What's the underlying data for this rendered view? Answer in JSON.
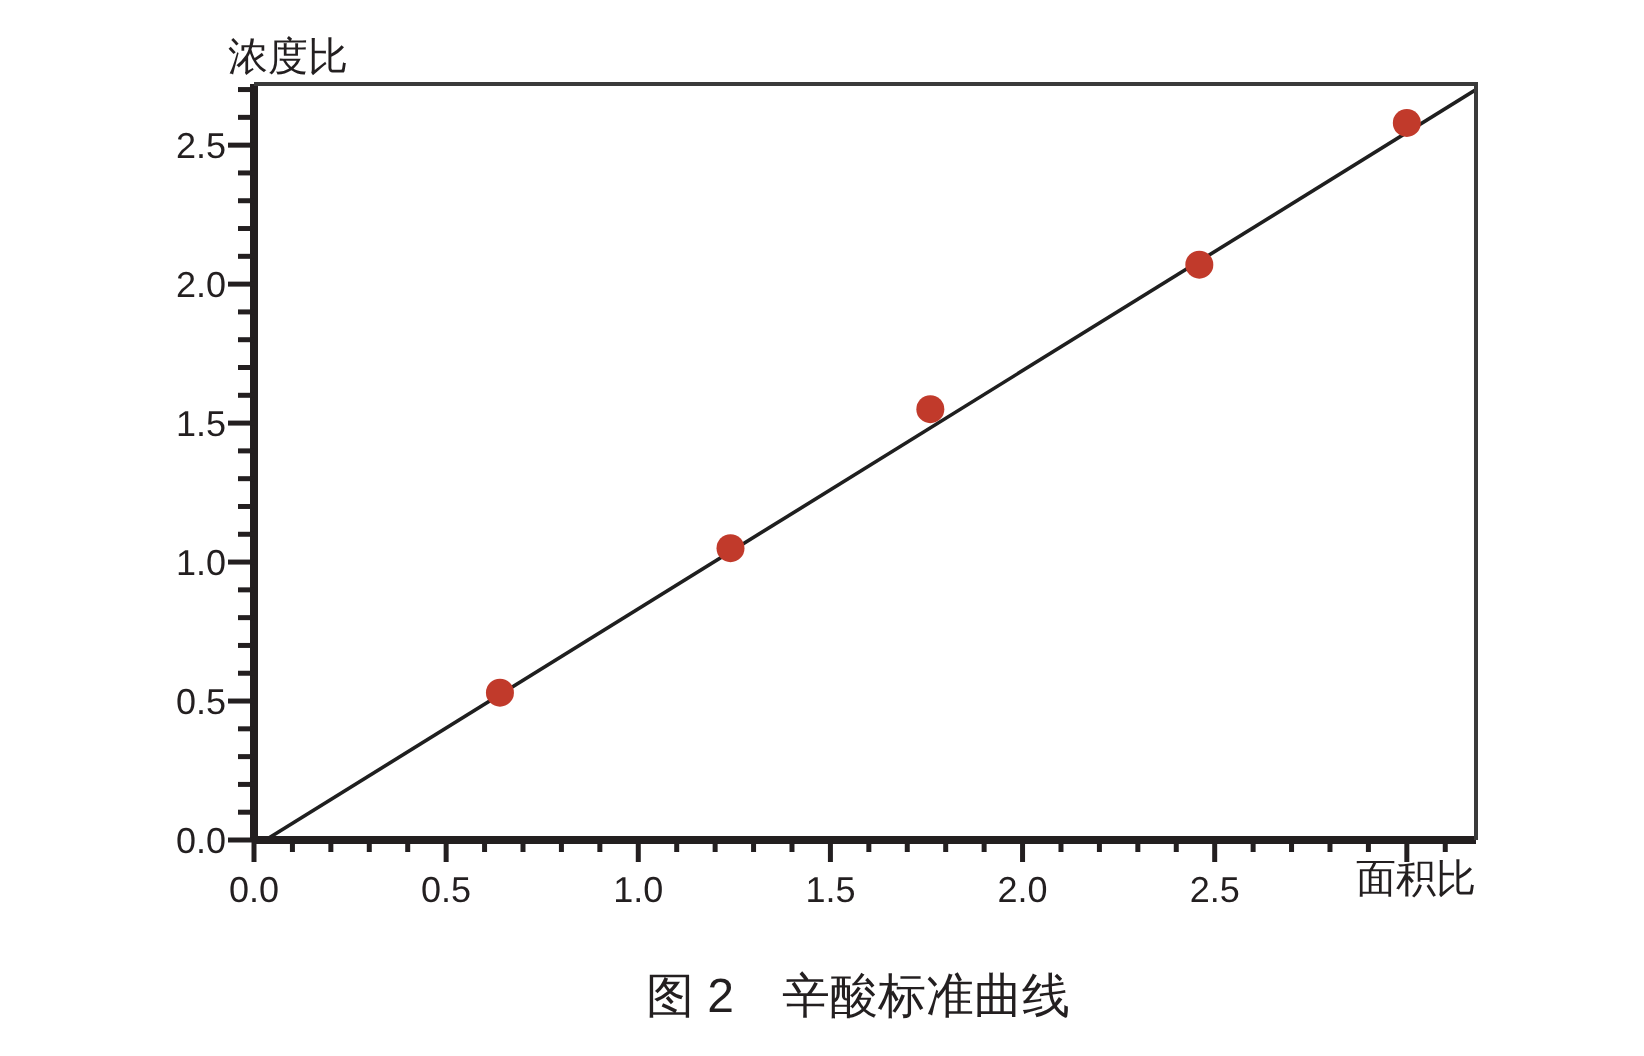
{
  "chart_data": {
    "type": "scatter",
    "title": "图 2　辛酸标准曲线",
    "xlabel": "面积比",
    "ylabel": "浓度比",
    "series": [
      {
        "type": "line",
        "color": "#1f1f1f",
        "x": [
          0.03,
          3.18
        ],
        "values": [
          0,
          2.7
        ]
      },
      {
        "marker": "circle",
        "color": "#c13a2b",
        "x": [
          0.64,
          1.24,
          1.76,
          2.46,
          3.0
        ],
        "values": [
          0.53,
          1.05,
          1.55,
          2.07,
          2.58
        ]
      }
    ],
    "xlim": [
      0,
      3.18
    ],
    "ylim": [
      0,
      2.72
    ],
    "xticks": [
      {
        "value": 0,
        "label": "0.0"
      },
      {
        "value": 0.1,
        "label": null
      },
      {
        "value": 0.2,
        "label": null
      },
      {
        "value": 0.3,
        "label": null
      },
      {
        "value": 0.4,
        "label": null
      },
      0.5,
      {
        "value": 0.6,
        "label": null
      },
      {
        "value": 0.7,
        "label": null
      },
      {
        "value": 0.8,
        "label": null
      },
      {
        "value": 0.9,
        "label": null
      },
      {
        "value": 1,
        "label": "1.0"
      },
      {
        "value": 1.1,
        "label": null
      },
      {
        "value": 1.2,
        "label": null
      },
      {
        "value": 1.3,
        "label": null
      },
      {
        "value": 1.4,
        "label": null
      },
      1.5,
      {
        "value": 1.6,
        "label": null
      },
      {
        "value": 1.7,
        "label": null
      },
      {
        "value": 1.8,
        "label": null
      },
      {
        "value": 1.9,
        "label": null
      },
      {
        "value": 2,
        "label": "2.0"
      },
      {
        "value": 2.1,
        "label": null
      },
      {
        "value": 2.2,
        "label": null
      },
      {
        "value": 2.3,
        "label": null
      },
      {
        "value": 2.4,
        "label": null
      },
      2.5,
      {
        "value": 2.6,
        "label": null
      },
      {
        "value": 2.7,
        "label": null
      },
      {
        "value": 2.8,
        "label": null
      },
      {
        "value": 2.9,
        "label": null
      },
      {
        "value": 3,
        "label": null
      },
      {
        "value": 3.1,
        "label": null
      }
    ],
    "yticks": [
      {
        "value": 0,
        "label": "0.0"
      },
      {
        "value": 0.1,
        "label": null
      },
      {
        "value": 0.2,
        "label": null
      },
      {
        "value": 0.3,
        "label": null
      },
      {
        "value": 0.4,
        "label": null
      },
      0.5,
      {
        "value": 0.6,
        "label": null
      },
      {
        "value": 0.7,
        "label": null
      },
      {
        "value": 0.8,
        "label": null
      },
      {
        "value": 0.9,
        "label": null
      },
      {
        "value": 1,
        "label": "1.0"
      },
      {
        "value": 1.1,
        "label": null
      },
      {
        "value": 1.2,
        "label": null
      },
      {
        "value": 1.3,
        "label": null
      },
      {
        "value": 1.4,
        "label": null
      },
      1.5,
      {
        "value": 1.6,
        "label": null
      },
      {
        "value": 1.7,
        "label": null
      },
      {
        "value": 1.8,
        "label": null
      },
      {
        "value": 1.9,
        "label": null
      },
      {
        "value": 2,
        "label": "2.0"
      },
      {
        "value": 2.1,
        "label": null
      },
      {
        "value": 2.2,
        "label": null
      },
      {
        "value": 2.3,
        "label": null
      },
      {
        "value": 2.4,
        "label": null
      },
      2.5,
      {
        "value": 2.6,
        "label": null
      },
      {
        "value": 2.7,
        "label": null
      }
    ]
  }
}
